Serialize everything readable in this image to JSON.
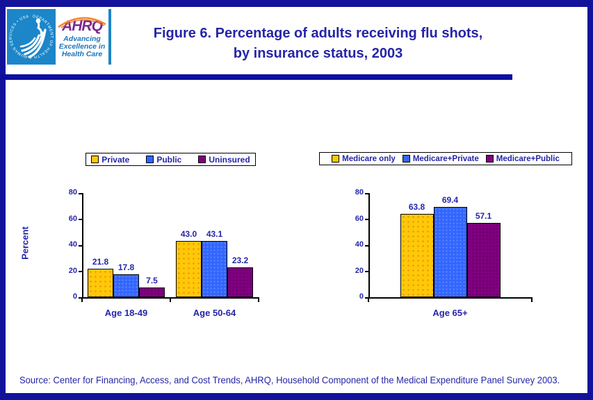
{
  "header": {
    "title_line1": "Figure 6. Percentage of adults receiving flu shots,",
    "title_line2": "by insurance status, 2003",
    "logo": {
      "hhs_seal_text": "DEPARTMENT OF HEALTH & HUMAN SERVICES • USA",
      "ahrq_acronym": "AHRQ",
      "ahrq_tagline_line1": "Advancing",
      "ahrq_tagline_line2": "Excellence in",
      "ahrq_tagline_line3": "Health Care"
    }
  },
  "colors": {
    "navy_text": "#2525A8",
    "navy_accent": "#0D0DA1",
    "frame_border": "#12129B",
    "series_gold": "#FFC808",
    "series_blue": "#3366FF",
    "series_purple": "#800080",
    "hhs_blue": "#1C86C9",
    "ahrq_purple": "#7A2A8E",
    "arc_orange": "#F08A24"
  },
  "chart_data": [
    {
      "type": "bar",
      "title": "",
      "categories": [
        "Age 18-49",
        "Age 50-64"
      ],
      "series": [
        {
          "name": "Private",
          "values": [
            21.8,
            43.0
          ],
          "color": "#FFC808",
          "texture": "gold"
        },
        {
          "name": "Public",
          "values": [
            17.8,
            43.1
          ],
          "color": "#3366FF",
          "texture": "blue"
        },
        {
          "name": "Uninsured",
          "values": [
            7.5,
            23.2
          ],
          "color": "#800080",
          "texture": "purple"
        }
      ],
      "xlabel": "",
      "ylabel": "Percent",
      "ylim": [
        0,
        80
      ],
      "yticks": [
        0,
        20,
        40,
        60,
        80
      ],
      "value_label_decimals": 1,
      "grid": false,
      "legend_position": "top"
    },
    {
      "type": "bar",
      "title": "",
      "categories": [
        "Age 65+"
      ],
      "series": [
        {
          "name": "Medicare only",
          "values": [
            63.8
          ],
          "color": "#FFC808",
          "texture": "gold"
        },
        {
          "name": "Medicare+Private",
          "values": [
            69.4
          ],
          "color": "#3366FF",
          "texture": "blue"
        },
        {
          "name": "Medicare+Public",
          "values": [
            57.1
          ],
          "color": "#800080",
          "texture": "purple"
        }
      ],
      "xlabel": "",
      "ylabel": "",
      "ylim": [
        0,
        80
      ],
      "yticks": [
        0,
        20,
        40,
        60,
        80
      ],
      "value_label_decimals": 1,
      "grid": false,
      "legend_position": "top"
    }
  ],
  "footer": {
    "source": "Source: Center for Financing, Access, and Cost Trends, AHRQ, Household Component of the Medical Expenditure Panel Survey 2003."
  }
}
